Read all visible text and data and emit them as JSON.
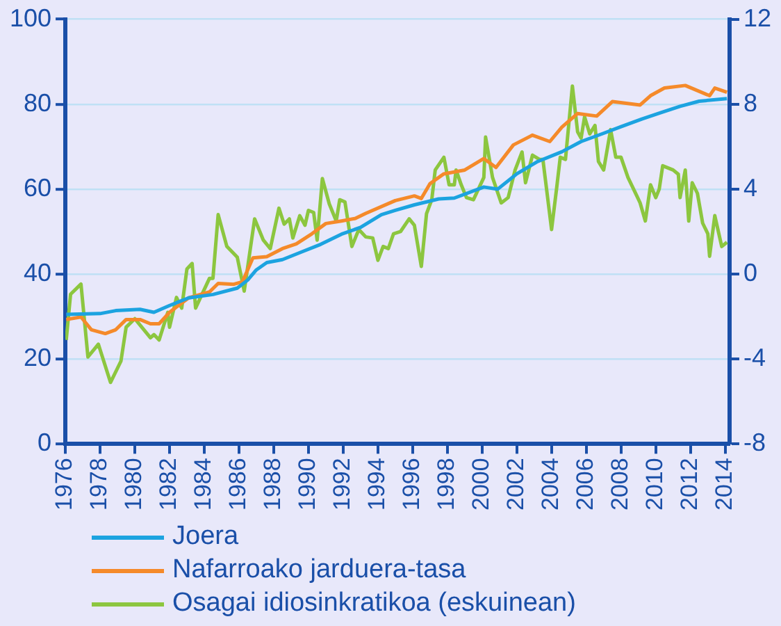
{
  "chart_data": {
    "type": "line",
    "xlim": [
      1976,
      2014.25
    ],
    "xticks": [
      1976,
      1978,
      1980,
      1982,
      1984,
      1986,
      1988,
      1990,
      1992,
      1994,
      1996,
      1998,
      2000,
      2002,
      2004,
      2006,
      2008,
      2010,
      2012,
      2014
    ],
    "ylim": [
      0,
      100
    ],
    "yticks": [
      0,
      20,
      40,
      60,
      80,
      100
    ],
    "y2lim": [
      -8,
      12
    ],
    "y2ticks": [
      -8,
      -4,
      0,
      4,
      8,
      12
    ],
    "grid": "y",
    "legend": "bottom left",
    "line_style": "solid",
    "marker": "none",
    "series": [
      {
        "name": "Joera",
        "color": "#1ca3e0",
        "x": [
          1976.05,
          1978.0,
          1978.9,
          1980.3,
          1981.1,
          1982.0,
          1983.1,
          1984.5,
          1985.9,
          1986.5,
          1987.0,
          1987.6,
          1988.5,
          1989.6,
          1990.7,
          1991.9,
          1993.0,
          1994.2,
          1995.0,
          1996.1,
          1997.5,
          1998.4,
          2000.1,
          2000.9,
          2002.0,
          2003.2,
          2004.6,
          2005.7,
          2006.9,
          2008.0,
          2009.2,
          2010.3,
          2011.4,
          2012.5,
          2014.1
        ],
        "values": [
          30.5,
          30.7,
          31.4,
          31.7,
          31,
          32.6,
          34.4,
          35.2,
          36.7,
          38.6,
          41,
          42.7,
          43.4,
          45.2,
          47,
          49.4,
          51,
          54,
          55,
          56.3,
          57.7,
          57.9,
          60.5,
          60,
          63.6,
          66.5,
          68.8,
          71.2,
          73,
          74.7,
          76.5,
          78,
          79.5,
          80.7,
          81.3
        ]
      },
      {
        "name": "Nafarroako jarduera-tasa",
        "color": "#f58a2a",
        "x": [
          1976.05,
          1976.9,
          1977.5,
          1978.3,
          1978.9,
          1979.5,
          1980.3,
          1980.9,
          1981.4,
          1982.0,
          1983.1,
          1984.3,
          1984.8,
          1985.7,
          1986.2,
          1986.8,
          1987.6,
          1988.5,
          1989.3,
          1990.2,
          1991.0,
          1991.9,
          1992.7,
          1993.3,
          1995.0,
          1996.1,
          1996.5,
          1997.0,
          1997.8,
          1999.0,
          2000.1,
          2000.8,
          2001.8,
          2002.9,
          2003.9,
          2004.6,
          2005.5,
          2006.6,
          2007.5,
          2009.1,
          2009.7,
          2010.5,
          2011.7,
          2013.1,
          2013.4,
          2014.1
        ],
        "values": [
          29.3,
          29.9,
          26.9,
          26,
          26.9,
          29.3,
          29.3,
          28.3,
          28.3,
          31,
          34.4,
          35.8,
          37.8,
          37.6,
          38.2,
          43.8,
          44.1,
          46,
          47.1,
          49.5,
          51.9,
          52.5,
          53.1,
          54.3,
          57.3,
          58.4,
          57.8,
          61.3,
          63.6,
          64.5,
          67.2,
          65.1,
          70.4,
          72.7,
          71.2,
          74.6,
          77.8,
          77.2,
          80.6,
          79.8,
          82,
          83.8,
          84.4,
          82,
          83.8,
          82.8
        ]
      },
      {
        "name": "Osagai idiosinkratikoa (eskuinean)",
        "color": "#8cc63f",
        "axis": "y2",
        "x": [
          1976.05,
          1976.3,
          1976.9,
          1977.3,
          1977.9,
          1978.6,
          1979.2,
          1979.5,
          1980.0,
          1980.4,
          1980.9,
          1981.1,
          1981.4,
          1981.9,
          1982.0,
          1982.4,
          1982.7,
          1983.0,
          1983.3,
          1983.5,
          1984.3,
          1984.5,
          1984.8,
          1985.3,
          1985.9,
          1986.3,
          1986.9,
          1987.4,
          1987.8,
          1988.3,
          1988.6,
          1988.9,
          1989.1,
          1989.5,
          1989.8,
          1990.0,
          1990.3,
          1990.5,
          1990.8,
          1991.2,
          1991.6,
          1991.8,
          1992.1,
          1992.5,
          1992.9,
          1993.3,
          1993.7,
          1994.0,
          1994.3,
          1994.6,
          1994.9,
          1995.3,
          1995.8,
          1996.1,
          1996.5,
          1996.8,
          1997.1,
          1997.3,
          1997.8,
          1998.1,
          1998.4,
          1998.5,
          1998.8,
          1999.1,
          1999.5,
          2000.1,
          2000.2,
          2000.6,
          2001.1,
          2001.5,
          2001.9,
          2002.3,
          2002.5,
          2002.9,
          2003.3,
          2003.5,
          2004.0,
          2004.3,
          2004.5,
          2004.8,
          2005.2,
          2005.5,
          2005.7,
          2005.9,
          2006.2,
          2006.5,
          2006.7,
          2007.0,
          2007.4,
          2007.7,
          2008.0,
          2008.4,
          2008.9,
          2009.1,
          2009.4,
          2009.7,
          2010.0,
          2010.2,
          2010.4,
          2011.0,
          2011.3,
          2011.4,
          2011.7,
          2011.9,
          2012.1,
          2012.4,
          2012.7,
          2013.0,
          2013.1,
          2013.4,
          2013.8,
          2014.1
        ],
        "values": [
          -3.1,
          -0.95,
          -0.47,
          -3.9,
          -3.3,
          -5.1,
          -4.1,
          -2.5,
          -2.1,
          -2.5,
          -3,
          -2.85,
          -3.1,
          -1.8,
          -2.5,
          -1.1,
          -1.6,
          0.24,
          0.5,
          -1.6,
          -0.2,
          -0.2,
          2.8,
          1.3,
          0.8,
          -0.8,
          2.6,
          1.6,
          1.2,
          3.1,
          2.35,
          2.6,
          1.7,
          2.75,
          2.3,
          3,
          2.9,
          1.6,
          4.5,
          3.3,
          2.5,
          3.5,
          3.4,
          1.3,
          2.1,
          1.75,
          1.7,
          0.65,
          1.3,
          1.2,
          1.9,
          2,
          2.6,
          2.3,
          0.36,
          2.85,
          3.5,
          4.9,
          5.5,
          4.2,
          4.2,
          4.9,
          4.2,
          3.6,
          3.5,
          4.55,
          6.45,
          4.55,
          3.35,
          3.6,
          4.9,
          5.75,
          4.3,
          5.6,
          5.4,
          5.4,
          2.1,
          4.1,
          5.5,
          5.4,
          8.85,
          6.7,
          6.4,
          7.4,
          6.6,
          7,
          5.3,
          4.9,
          6.8,
          5.5,
          5.5,
          4.55,
          3.7,
          3.35,
          2.5,
          4.2,
          3.6,
          4,
          5.1,
          4.9,
          4.7,
          3.6,
          4.9,
          2.5,
          4.3,
          3.8,
          2.4,
          1.9,
          0.84,
          2.75,
          1.3,
          1.5
        ]
      }
    ]
  }
}
